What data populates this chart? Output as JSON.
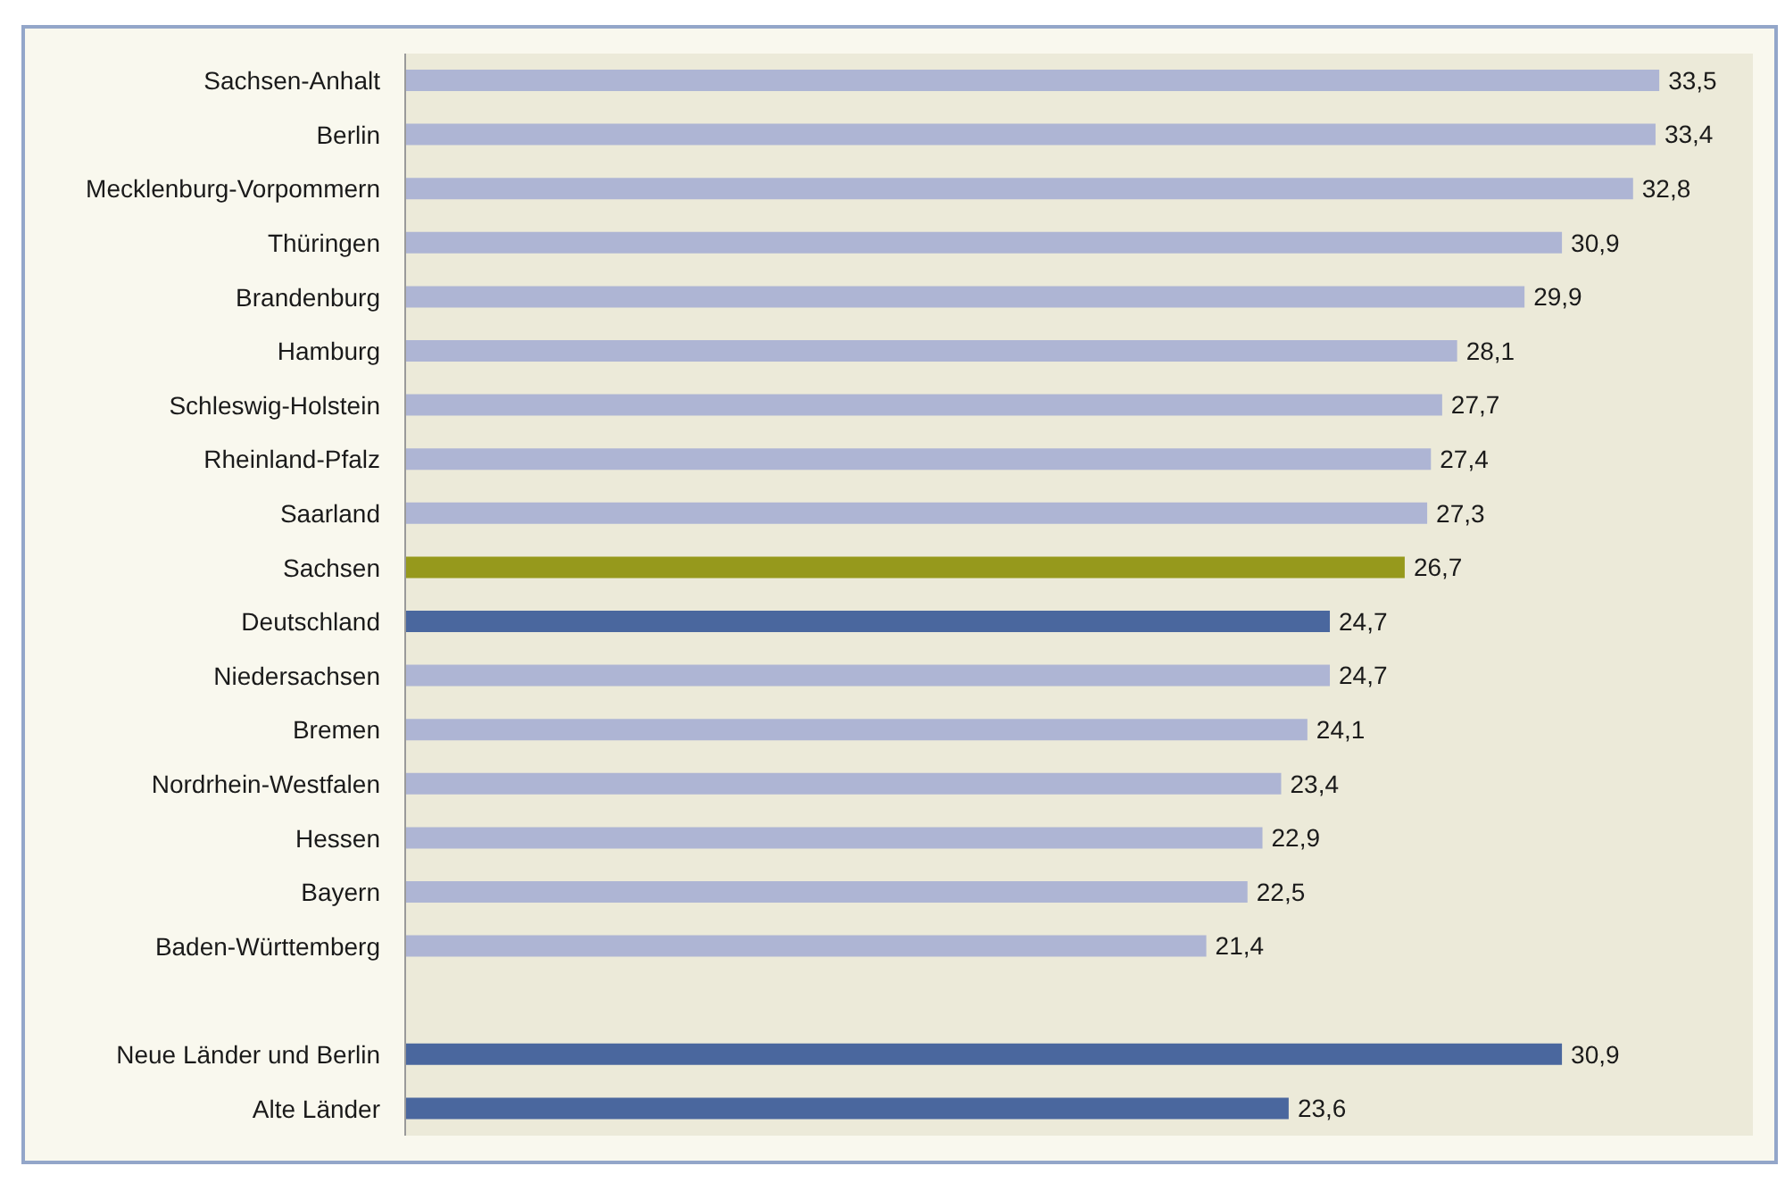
{
  "chart_data": {
    "type": "bar",
    "orientation": "horizontal",
    "categories": [
      "Sachsen-Anhalt",
      "Berlin",
      "Mecklenburg-Vorpommern",
      "Thüringen",
      "Brandenburg",
      "Hamburg",
      "Schleswig-Holstein",
      "Rheinland-Pfalz",
      "Saarland",
      "Sachsen",
      "Deutschland",
      "Niedersachsen",
      "Bremen",
      "Nordrhein-Westfalen",
      "Hessen",
      "Bayern",
      "Baden-Württemberg",
      null,
      "Neue Länder und Berlin",
      "Alte Länder"
    ],
    "values": [
      33.5,
      33.4,
      32.8,
      30.9,
      29.9,
      28.1,
      27.7,
      27.4,
      27.3,
      26.7,
      24.7,
      24.7,
      24.1,
      23.4,
      22.9,
      22.5,
      21.4,
      null,
      30.9,
      23.6
    ],
    "value_labels": [
      "33,5",
      "33,4",
      "32,8",
      "30,9",
      "29,9",
      "28,1",
      "27,7",
      "27,4",
      "27,3",
      "26,7",
      "24,7",
      "24,7",
      "24,1",
      "23,4",
      "22,9",
      "22,5",
      "21,4",
      null,
      "30,9",
      "23,6"
    ],
    "colors": [
      "#aeb5d4",
      "#aeb5d4",
      "#aeb5d4",
      "#aeb5d4",
      "#aeb5d4",
      "#aeb5d4",
      "#aeb5d4",
      "#aeb5d4",
      "#aeb5d4",
      "#96991c",
      "#4a679e",
      "#aeb5d4",
      "#aeb5d4",
      "#aeb5d4",
      "#aeb5d4",
      "#aeb5d4",
      "#aeb5d4",
      "#aeb5d4",
      "#4a679e",
      "#4a679e"
    ]
  }
}
